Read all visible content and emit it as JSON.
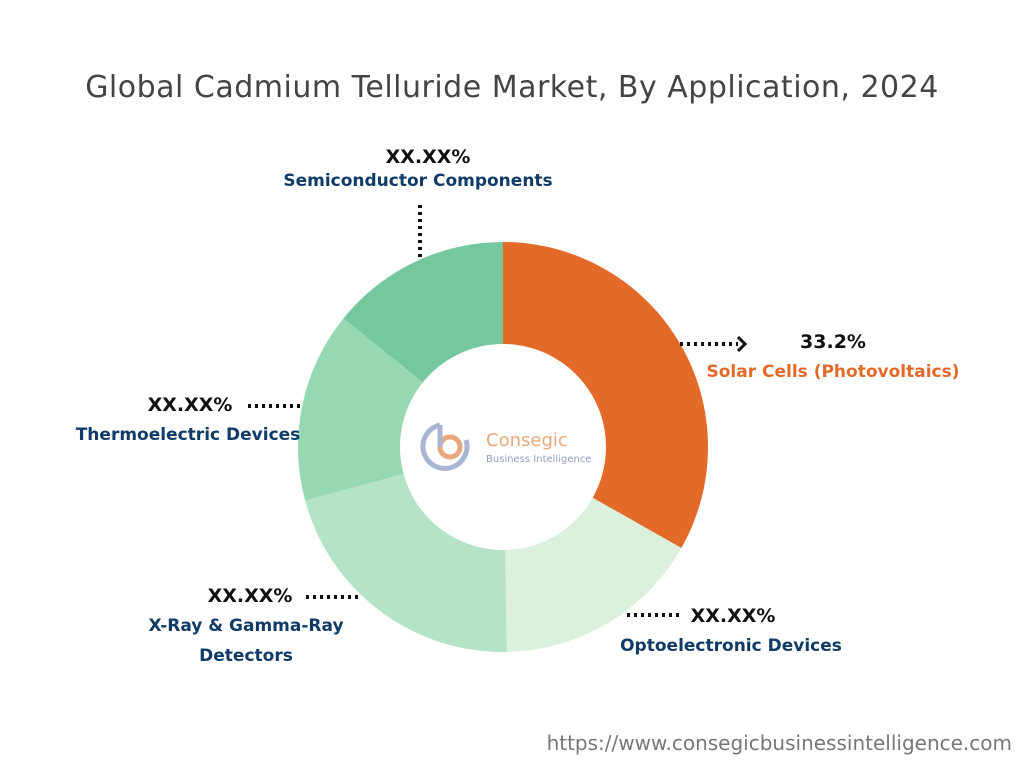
{
  "chart_data": {
    "type": "donut",
    "title": "Global Cadmium Telluride Market, By Application, 2024",
    "categories": [
      "Solar Cells (Photovoltaics)",
      "Optoelectronic Devices",
      "X-Ray & Gamma-Ray Detectors",
      "Thermoelectric Devices",
      "Semiconductor Components"
    ],
    "values": [
      33.2,
      16.5,
      21.1,
      15.0,
      14.2
    ],
    "value_labels": [
      "33.2%",
      "XX.XX%",
      "XX.XX%",
      "XX.XX%",
      "XX.XX%"
    ],
    "colors": [
      "#e36a29",
      "#dbf1de",
      "#b4e4c5",
      "#95d8b1",
      "#75c79d"
    ],
    "label_colors": [
      "#e36a29",
      "#0f3b66",
      "#0f3b66",
      "#0f3b66",
      "#0f3b66"
    ],
    "logo": {
      "name": "Consegic",
      "tagline": "Business Intelligence"
    },
    "source": "https://www.consegicbusinessintelligence.com"
  }
}
